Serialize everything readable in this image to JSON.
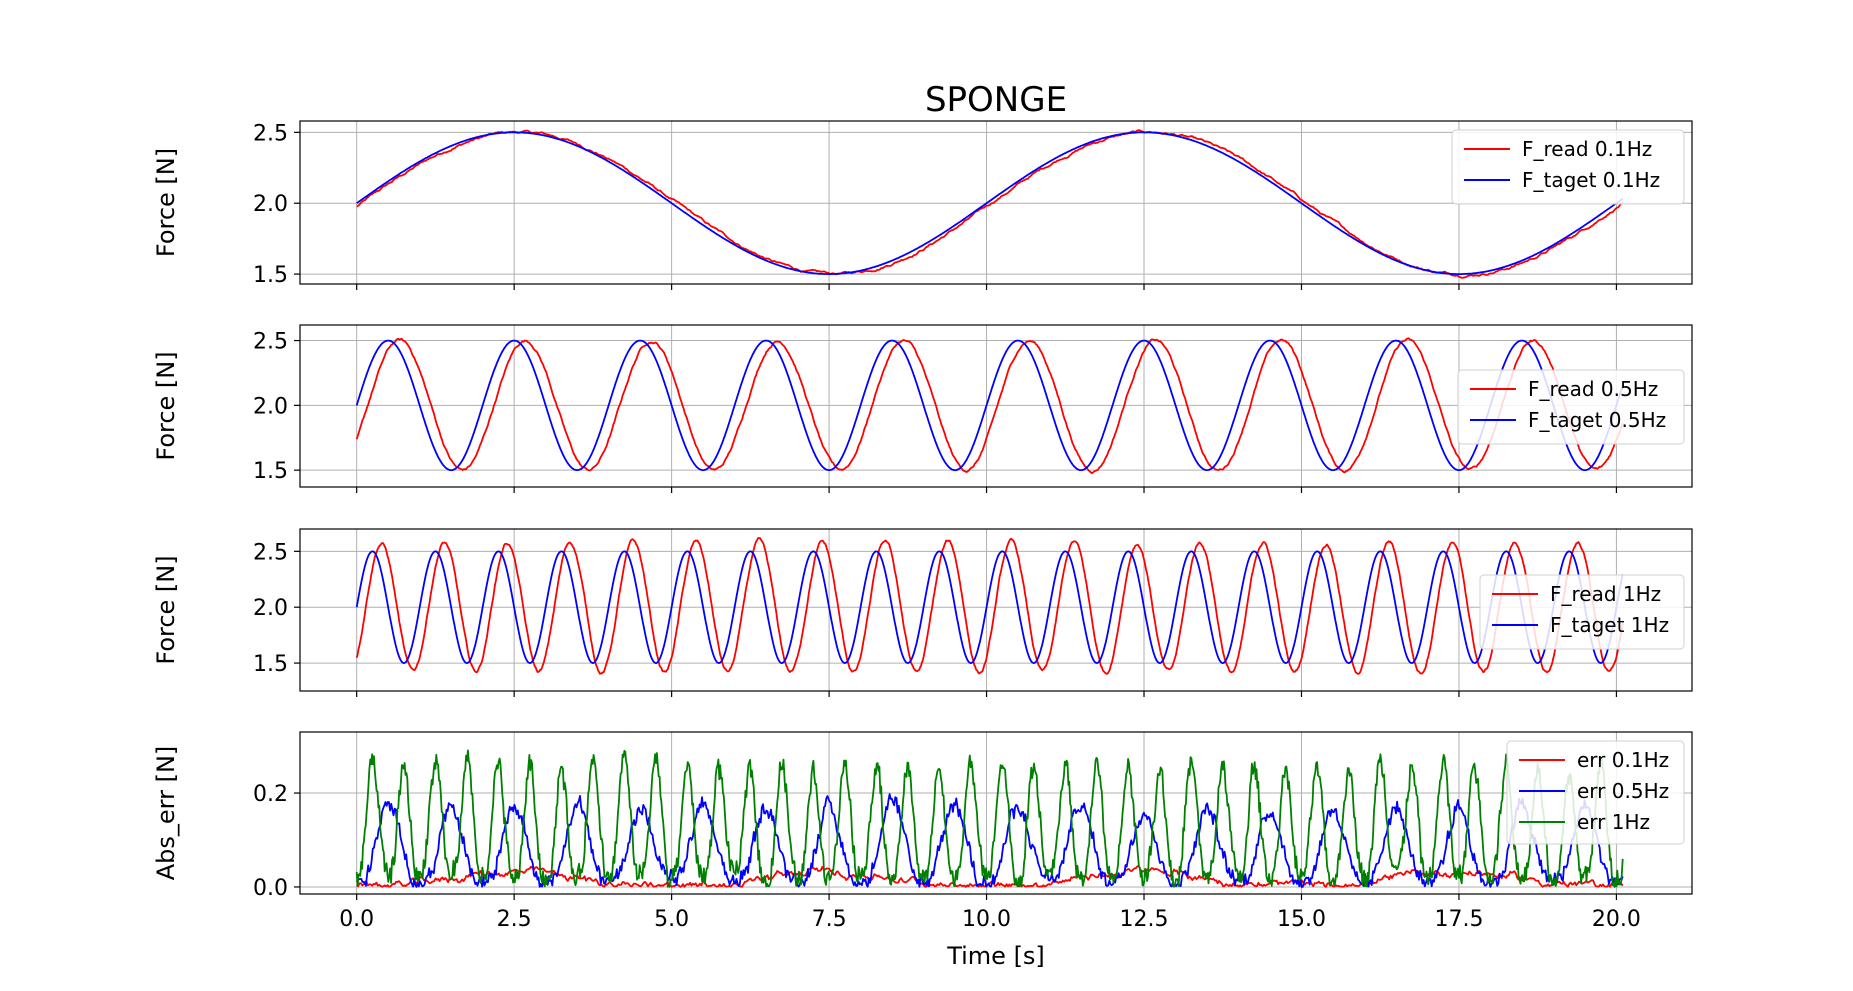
{
  "chart_data": [
    {
      "type": "line",
      "title": "SPONGE",
      "ylabel": "Force [N]",
      "xlabel": "",
      "xlim": [
        -0.9,
        21.2
      ],
      "ylim": [
        1.43,
        2.58
      ],
      "yticks": [
        1.5,
        2.0,
        2.5
      ],
      "ytick_labels": [
        "1.5",
        "2.0",
        "2.5"
      ],
      "grid": true,
      "legend": "upper right",
      "series": [
        {
          "name": "F_read 0.1Hz",
          "color": "#ff0000",
          "kind": "read",
          "freq": 0.1,
          "offset": 2.0,
          "amp": 0.5,
          "lag": 0.08,
          "noise": 0.012,
          "x_range": [
            0,
            20.1
          ]
        },
        {
          "name": "F_taget 0.1Hz",
          "color": "#0000ff",
          "kind": "target",
          "freq": 0.1,
          "offset": 2.0,
          "amp": 0.5,
          "x_range": [
            0,
            20.1
          ]
        }
      ]
    },
    {
      "type": "line",
      "title": "",
      "ylabel": "Force [N]",
      "xlabel": "",
      "xlim": [
        -0.9,
        21.2
      ],
      "ylim": [
        1.37,
        2.62
      ],
      "yticks": [
        1.5,
        2.0,
        2.5
      ],
      "ytick_labels": [
        "1.5",
        "2.0",
        "2.5"
      ],
      "grid": true,
      "legend": "center right",
      "series": [
        {
          "name": "F_read 0.5Hz",
          "color": "#ff0000",
          "kind": "read",
          "freq": 0.5,
          "offset": 2.0,
          "amp": 0.5,
          "lag": 0.18,
          "noise": 0.015,
          "x_range": [
            0,
            20.1
          ]
        },
        {
          "name": "F_taget 0.5Hz",
          "color": "#0000ff",
          "kind": "target",
          "freq": 0.5,
          "offset": 2.0,
          "amp": 0.5,
          "x_range": [
            0,
            20.1
          ]
        }
      ]
    },
    {
      "type": "line",
      "title": "",
      "ylabel": "Force [N]",
      "xlabel": "",
      "xlim": [
        -0.9,
        21.2
      ],
      "ylim": [
        1.25,
        2.7
      ],
      "yticks": [
        1.5,
        2.0,
        2.5
      ],
      "ytick_labels": [
        "1.5",
        "2.0",
        "2.5"
      ],
      "grid": true,
      "legend": "center right",
      "series": [
        {
          "name": "F_read 1Hz",
          "color": "#ff0000",
          "kind": "read",
          "freq": 1.0,
          "offset": 2.0,
          "amp": 0.58,
          "lag": 0.14,
          "noise": 0.02,
          "x_range": [
            0,
            20.1
          ]
        },
        {
          "name": "F_taget 1Hz",
          "color": "#0000ff",
          "kind": "target",
          "freq": 1.0,
          "offset": 2.0,
          "amp": 0.5,
          "x_range": [
            0,
            20.1
          ]
        }
      ]
    },
    {
      "type": "line",
      "title": "",
      "ylabel": "Abs_err [N]",
      "xlabel": "Time [s]",
      "xlim": [
        -0.9,
        21.2
      ],
      "ylim": [
        -0.015,
        0.33
      ],
      "yticks": [
        0.0,
        0.2
      ],
      "ytick_labels": [
        "0.0",
        "0.2"
      ],
      "xticks": [
        0,
        2.5,
        5,
        7.5,
        10,
        12.5,
        15,
        17.5,
        20
      ],
      "xtick_labels": [
        "0.0",
        "2.5",
        "5.0",
        "7.5",
        "10.0",
        "12.5",
        "15.0",
        "17.5",
        "20.0"
      ],
      "grid": true,
      "legend": "upper right",
      "series": [
        {
          "name": "err 0.1Hz",
          "color": "#ff0000",
          "kind": "err",
          "freq": 0.1,
          "peak": 0.03,
          "noise": 0.01,
          "x_range": [
            0,
            20.1
          ]
        },
        {
          "name": "err 0.5Hz",
          "color": "#0000ff",
          "kind": "err",
          "freq": 0.5,
          "peak": 0.16,
          "noise": 0.015,
          "x_range": [
            0,
            20.1
          ]
        },
        {
          "name": "err 1Hz",
          "color": "#008000",
          "kind": "err",
          "freq": 1.0,
          "peak": 0.24,
          "noise": 0.02,
          "x_range": [
            0,
            20.1
          ]
        }
      ]
    }
  ]
}
